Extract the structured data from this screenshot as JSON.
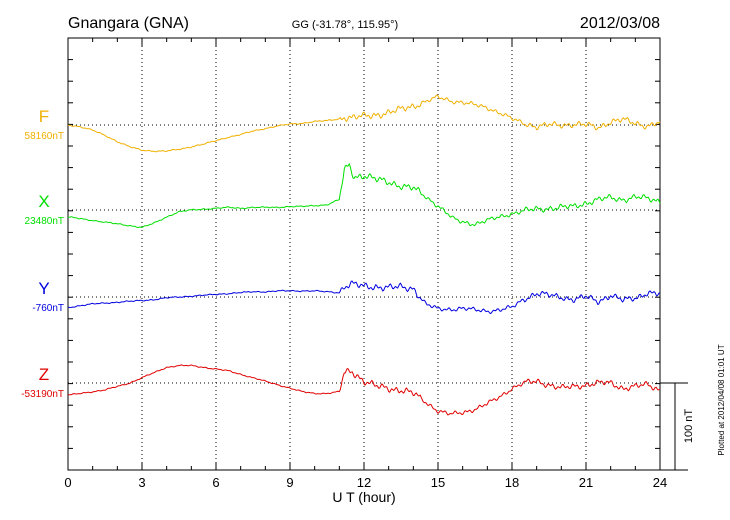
{
  "header": {
    "station": "Gnangara (GNA)",
    "coords": "GG (-31.78°, 115.95°)",
    "date": "2012/03/08"
  },
  "plot_note": "Plotted at 2012/04/08 01:01 UT",
  "chart_data": {
    "type": "line",
    "xlabel": "U T (hour)",
    "xlim": [
      0,
      24
    ],
    "xticks": [
      "0",
      "3",
      "6",
      "9",
      "12",
      "15",
      "18",
      "21",
      "24"
    ],
    "scale_label": "100 nT",
    "series": [
      {
        "name": "F",
        "baseline_label": "58160nT",
        "color": "#f0b000",
        "x": [
          0,
          0.5,
          1,
          1.5,
          2,
          2.5,
          3,
          3.5,
          4,
          4.5,
          5,
          5.5,
          6,
          6.5,
          7,
          7.5,
          8,
          8.5,
          9,
          9.5,
          10,
          10.5,
          11,
          11.2,
          11.5,
          12,
          12.5,
          13,
          13.5,
          14,
          14.5,
          15,
          15.5,
          16,
          16.5,
          17,
          17.5,
          18,
          18.5,
          19,
          19.5,
          20,
          20.5,
          21,
          21.5,
          22,
          22.5,
          23,
          23.5,
          24
        ],
        "y": [
          0,
          -2,
          -6,
          -12,
          -19,
          -25,
          -29,
          -30,
          -30,
          -28,
          -25,
          -22,
          -18,
          -14,
          -11,
          -7,
          -4,
          -1,
          1,
          2,
          4,
          5,
          7,
          9,
          8,
          10,
          12,
          14,
          18,
          22,
          27,
          32,
          28,
          26,
          23,
          20,
          14,
          7,
          2,
          -2,
          0,
          0,
          1,
          0,
          -3,
          4,
          6,
          2,
          -1,
          3
        ]
      },
      {
        "name": "X",
        "baseline_label": "23480nT",
        "color": "#00e000",
        "x": [
          0,
          0.5,
          1,
          1.5,
          2,
          2.5,
          3,
          3.5,
          4,
          4.5,
          5,
          5.5,
          6,
          6.5,
          7,
          7.5,
          8,
          8.5,
          9,
          9.5,
          10,
          10.5,
          11,
          11.2,
          11.4,
          11.6,
          12,
          12.5,
          13,
          13.5,
          14,
          14.5,
          15,
          15.3,
          15.6,
          16,
          16.5,
          17,
          17.5,
          18,
          18.5,
          19,
          19.5,
          20,
          20.5,
          21,
          21.5,
          22,
          22.5,
          23,
          23.5,
          24
        ],
        "y": [
          -8,
          -10,
          -12,
          -14,
          -16,
          -18,
          -20,
          -15,
          -8,
          -2,
          0,
          1,
          2,
          3,
          2,
          3,
          3,
          3,
          4,
          4,
          5,
          6,
          12,
          45,
          52,
          38,
          40,
          35,
          32,
          28,
          25,
          15,
          5,
          -2,
          -10,
          -14,
          -16,
          -12,
          -8,
          -4,
          -1,
          1,
          2,
          3,
          4,
          8,
          12,
          14,
          12,
          15,
          13,
          10
        ]
      },
      {
        "name": "Y",
        "baseline_label": "-760nT",
        "color": "#0000e0",
        "x": [
          0,
          0.5,
          1,
          1.5,
          2,
          2.5,
          3,
          3.5,
          4,
          4.5,
          5,
          5.5,
          6,
          6.5,
          7,
          7.5,
          8,
          8.5,
          9,
          9.5,
          10,
          10.5,
          11,
          11.2,
          11.5,
          12,
          12.5,
          13,
          13.5,
          14,
          14.5,
          15,
          15.5,
          16,
          16.5,
          17,
          17.5,
          18,
          18.5,
          19,
          19.5,
          20,
          20.5,
          21,
          21.5,
          22,
          22.5,
          23,
          23.5,
          24
        ],
        "y": [
          -12,
          -10,
          -8,
          -7,
          -6,
          -5,
          -4,
          -3,
          -1,
          0,
          1,
          2,
          3,
          4,
          5,
          6,
          6,
          7,
          7,
          7,
          7,
          6,
          5,
          12,
          15,
          12,
          12,
          11,
          11,
          10,
          -8,
          -14,
          -14,
          -13,
          -15,
          -16,
          -15,
          -12,
          -2,
          4,
          2,
          0,
          -3,
          0,
          -5,
          2,
          -4,
          -1,
          5,
          3
        ]
      },
      {
        "name": "Z",
        "baseline_label": "-53190nT",
        "color": "#e00000",
        "x": [
          0,
          0.5,
          1,
          1.5,
          2,
          2.5,
          3,
          3.5,
          4,
          4.5,
          5,
          5.5,
          6,
          6.5,
          7,
          7.5,
          8,
          8.5,
          9,
          9.5,
          10,
          10.5,
          11,
          11.2,
          11.5,
          12,
          12.5,
          13,
          13.5,
          14,
          14.5,
          15,
          15.5,
          16,
          16.5,
          17,
          17.5,
          18,
          18.5,
          19,
          19.5,
          20,
          20.5,
          21,
          21.5,
          22,
          22.5,
          23,
          23.5,
          24
        ],
        "y": [
          -14,
          -12,
          -10,
          -8,
          -4,
          0,
          6,
          12,
          18,
          20,
          20,
          18,
          16,
          14,
          10,
          6,
          2,
          -2,
          -6,
          -10,
          -12,
          -12,
          -10,
          12,
          14,
          2,
          -4,
          -6,
          -8,
          -12,
          -22,
          -32,
          -36,
          -34,
          -30,
          -24,
          -16,
          -6,
          0,
          2,
          -2,
          -6,
          -4,
          -2,
          0,
          0,
          -6,
          -4,
          -2,
          -8
        ]
      }
    ]
  }
}
